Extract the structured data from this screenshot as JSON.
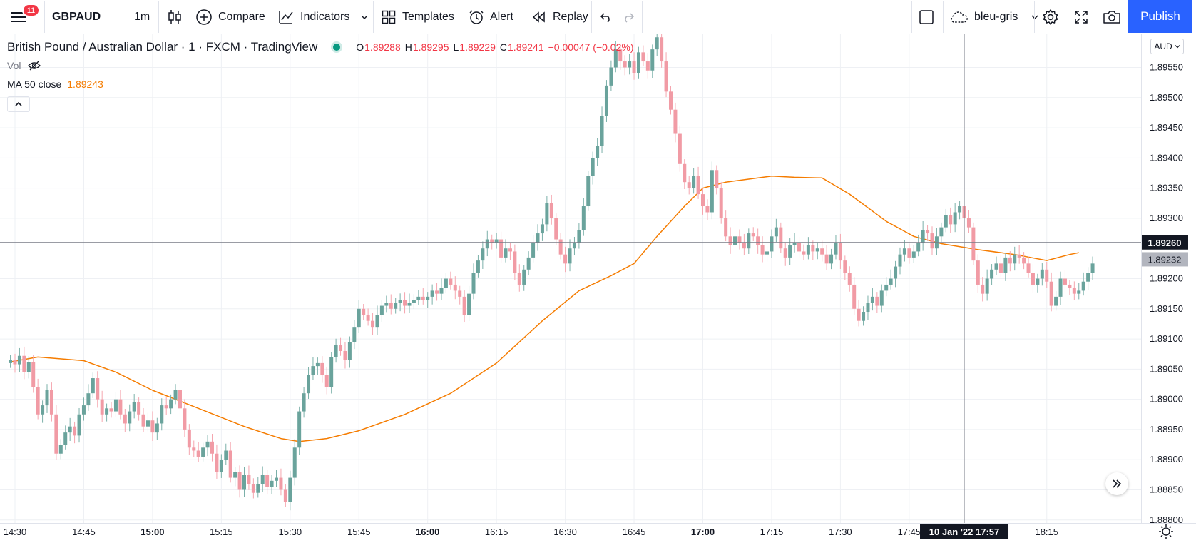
{
  "toolbar": {
    "menu_badge": "11",
    "symbol": "GBPAUD",
    "interval": "1m",
    "compare_label": "Compare",
    "indicators_label": "Indicators",
    "templates_label": "Templates",
    "alert_label": "Alert",
    "replay_label": "Replay",
    "layout_name": "bleu-gris",
    "publish_label": "Publish"
  },
  "legend": {
    "title": "British Pound / Australian Dollar · 1 · FXCM · TradingView",
    "ohlc": [
      {
        "k": "O",
        "v": "1.89288"
      },
      {
        "k": "H",
        "v": "1.89295"
      },
      {
        "k": "L",
        "v": "1.89229"
      },
      {
        "k": "C",
        "v": "1.89241"
      }
    ],
    "change": "−0.00047 (−0.02%)",
    "vol_label": "Vol",
    "ma_label": "MA 50 close",
    "ma_value": "1.89243"
  },
  "price_axis": {
    "currency": "AUD",
    "crosshair_price": "1.89260",
    "last_price": "1.89232"
  },
  "time_axis": {
    "crosshair_label": "10 Jan '22   17:57"
  },
  "colors": {
    "up": "#6aa39c",
    "down": "#f19ba5",
    "up_wick": "#7bb0a9",
    "down_wick": "#f5a6af",
    "ma": "#f57c00",
    "grid": "#eef0f4",
    "accent": "#2962ff"
  },
  "icons": [
    "menu-icon",
    "candles-icon",
    "plus-circle-icon",
    "indicators-icon",
    "templates-icon",
    "alarm-icon",
    "replay-icon",
    "undo-icon",
    "redo-icon",
    "square-icon",
    "cloud-icon",
    "gear-icon",
    "fullscreen-icon",
    "camera-icon",
    "eye-off-icon",
    "chevron-up-icon",
    "double-chevron-right-icon",
    "sun-gear-icon"
  ],
  "chart_data": {
    "type": "candlestick",
    "x_ticks": [
      {
        "label": "14:30",
        "min": 0,
        "bold": false
      },
      {
        "label": "14:45",
        "min": 15,
        "bold": false
      },
      {
        "label": "15:00",
        "min": 30,
        "bold": true
      },
      {
        "label": "15:15",
        "min": 45,
        "bold": false
      },
      {
        "label": "15:30",
        "min": 60,
        "bold": false
      },
      {
        "label": "15:45",
        "min": 75,
        "bold": false
      },
      {
        "label": "16:00",
        "min": 90,
        "bold": true
      },
      {
        "label": "16:15",
        "min": 105,
        "bold": false
      },
      {
        "label": "16:30",
        "min": 120,
        "bold": false
      },
      {
        "label": "16:45",
        "min": 135,
        "bold": false
      },
      {
        "label": "17:00",
        "min": 150,
        "bold": true
      },
      {
        "label": "17:15",
        "min": 165,
        "bold": false
      },
      {
        "label": "17:30",
        "min": 180,
        "bold": false
      },
      {
        "label": "17:45",
        "min": 195,
        "bold": false
      },
      {
        "label": "18:15",
        "min": 225,
        "bold": false
      }
    ],
    "y_ticks": [
      "1.89550",
      "1.89500",
      "1.89450",
      "1.89400",
      "1.89350",
      "1.89300",
      "1.89200",
      "1.89150",
      "1.89100",
      "1.89050",
      "1.89000",
      "1.88950",
      "1.88900",
      "1.88850",
      "1.88800"
    ],
    "ylim": [
      1.88795,
      1.89605
    ],
    "crosshair_min": 207,
    "crosshair_price": 1.8926,
    "last_price": 1.89232,
    "candle_start_min": -1,
    "close": [
      1.89065,
      1.89058,
      1.89072,
      1.89045,
      1.89062,
      1.8902,
      1.88975,
      1.8899,
      1.89015,
      1.88975,
      1.8891,
      1.88925,
      1.88945,
      1.88955,
      1.8894,
      1.88975,
      1.8899,
      1.8901,
      1.89035,
      1.89,
      1.88975,
      1.88985,
      1.8898,
      1.89,
      1.88975,
      1.8896,
      1.8898,
      1.88995,
      1.88975,
      1.88955,
      1.88965,
      1.88945,
      1.8896,
      1.8899,
      1.88985,
      1.89,
      1.89015,
      1.88985,
      1.8895,
      1.8892,
      1.88915,
      1.88905,
      1.8892,
      1.8893,
      1.8891,
      1.8888,
      1.889,
      1.88915,
      1.8887,
      1.8888,
      1.8885,
      1.88875,
      1.8886,
      1.88845,
      1.8886,
      1.88875,
      1.88855,
      1.88865,
      1.8887,
      1.8885,
      1.8883,
      1.8887,
      1.8892,
      1.8898,
      1.8901,
      1.8904,
      1.89055,
      1.8906,
      1.8904,
      1.8902,
      1.8907,
      1.8909,
      1.8908,
      1.89065,
      1.89095,
      1.8912,
      1.8915,
      1.8914,
      1.8913,
      1.8912,
      1.8914,
      1.89155,
      1.8916,
      1.8915,
      1.8916,
      1.89165,
      1.89155,
      1.8916,
      1.89165,
      1.8917,
      1.89165,
      1.8917,
      1.8918,
      1.89175,
      1.89185,
      1.892,
      1.8919,
      1.8918,
      1.8917,
      1.8914,
      1.89175,
      1.8921,
      1.8923,
      1.8925,
      1.89265,
      1.8926,
      1.89265,
      1.89235,
      1.8925,
      1.89245,
      1.8921,
      1.8919,
      1.89215,
      1.89235,
      1.8926,
      1.89275,
      1.8929,
      1.89325,
      1.893,
      1.89265,
      1.8924,
      1.89225,
      1.8925,
      1.8926,
      1.8928,
      1.8932,
      1.8937,
      1.894,
      1.8942,
      1.8947,
      1.8952,
      1.8955,
      1.8958,
      1.8956,
      1.8955,
      1.8956,
      1.8954,
      1.89575,
      1.8956,
      1.89545,
      1.8958,
      1.896,
      1.8956,
      1.8951,
      1.8948,
      1.8944,
      1.8939,
      1.8936,
      1.8935,
      1.8937,
      1.8934,
      1.8932,
      1.8931,
      1.8938,
      1.8935,
      1.893,
      1.8927,
      1.89255,
      1.8927,
      1.8926,
      1.8925,
      1.89275,
      1.8927,
      1.89255,
      1.8924,
      1.89245,
      1.8927,
      1.89285,
      1.8925,
      1.89235,
      1.89255,
      1.8926,
      1.89245,
      1.8924,
      1.89255,
      1.89245,
      1.8925,
      1.8924,
      1.89225,
      1.8924,
      1.8926,
      1.8923,
      1.8921,
      1.8919,
      1.8915,
      1.8913,
      1.89145,
      1.8916,
      1.8917,
      1.89155,
      1.8918,
      1.8919,
      1.892,
      1.8922,
      1.8924,
      1.8925,
      1.89235,
      1.89245,
      1.8926,
      1.8928,
      1.89275,
      1.8925,
      1.8927,
      1.89285,
      1.89305,
      1.8929,
      1.8931,
      1.8932,
      1.893,
      1.89285,
      1.8923,
      1.8919,
      1.89175,
      1.892,
      1.89215,
      1.89225,
      1.8921,
      1.89235,
      1.89225,
      1.8924,
      1.89235,
      1.89225,
      1.8921,
      1.8919,
      1.892,
      1.89215,
      1.89195,
      1.89155,
      1.8917,
      1.892,
      1.8919,
      1.89185,
      1.89175,
      1.8918,
      1.89195,
      1.8921,
      1.89225
    ],
    "ma50": [
      [
        -1,
        1.89062
      ],
      [
        5,
        1.8907
      ],
      [
        15,
        1.89064
      ],
      [
        22,
        1.89045
      ],
      [
        30,
        1.89015
      ],
      [
        40,
        1.88985
      ],
      [
        50,
        1.88955
      ],
      [
        58,
        1.88935
      ],
      [
        62,
        1.8893
      ],
      [
        68,
        1.88935
      ],
      [
        75,
        1.88948
      ],
      [
        85,
        1.88975
      ],
      [
        95,
        1.8901
      ],
      [
        105,
        1.8906
      ],
      [
        115,
        1.8913
      ],
      [
        123,
        1.8918
      ],
      [
        130,
        1.89205
      ],
      [
        135,
        1.89225
      ],
      [
        140,
        1.8927
      ],
      [
        146,
        1.8932
      ],
      [
        150,
        1.8935
      ],
      [
        155,
        1.8936
      ],
      [
        160,
        1.89365
      ],
      [
        165,
        1.8937
      ],
      [
        170,
        1.89368
      ],
      [
        176,
        1.89367
      ],
      [
        182,
        1.8934
      ],
      [
        190,
        1.89295
      ],
      [
        196,
        1.8927
      ],
      [
        202,
        1.89258
      ],
      [
        210,
        1.89248
      ],
      [
        218,
        1.8924
      ],
      [
        225,
        1.8923
      ],
      [
        230,
        1.8924
      ],
      [
        232,
        1.89243
      ]
    ]
  }
}
